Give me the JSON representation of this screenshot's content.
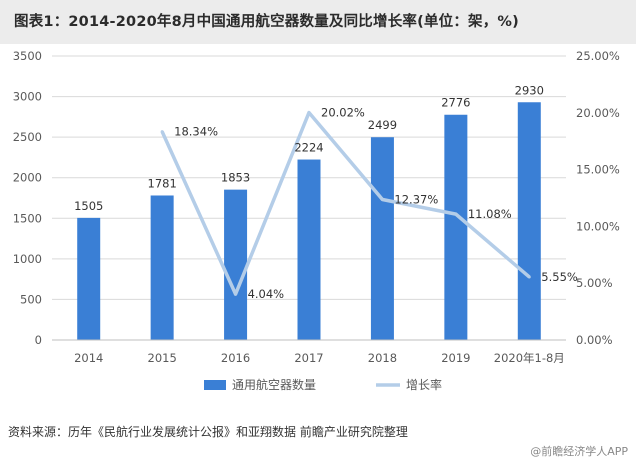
{
  "title": "图表1：2014-2020年8月中国通用航空器数量及同比增长率(单位：架，%)",
  "source": "资料来源：历年《民航行业发展统计公报》和亚翔数据 前瞻产业研究院整理",
  "credit": "@前瞻经济学人APP",
  "colors": {
    "bar": "#3a7fd5",
    "line": "#b4cde8",
    "grid": "#d9d9d9",
    "text": "#595959"
  },
  "chart_data": {
    "type": "bar",
    "categories": [
      "2014",
      "2015",
      "2016",
      "2017",
      "2018",
      "2019",
      "2020年1-8月"
    ],
    "series": [
      {
        "name": "通用航空器数量",
        "type": "bar",
        "axis": "left",
        "values": [
          1505,
          1781,
          1853,
          2224,
          2499,
          2776,
          2930
        ],
        "labels": [
          "1505",
          "1781",
          "1853",
          "2224",
          "2499",
          "2776",
          "2930"
        ]
      },
      {
        "name": "增长率",
        "type": "line",
        "axis": "right",
        "values": [
          null,
          18.34,
          4.04,
          20.02,
          12.37,
          11.08,
          5.55
        ],
        "labels": [
          "",
          "18.34%",
          "4.04%",
          "20.02%",
          "12.37%",
          "11.08%",
          "5.55%"
        ]
      }
    ],
    "y_left": {
      "min": 0,
      "max": 3500,
      "ticks": [
        "0",
        "500",
        "1000",
        "1500",
        "2000",
        "2500",
        "3000",
        "3500"
      ]
    },
    "y_right": {
      "min": 0,
      "max": 25,
      "ticks": [
        "0.00%",
        "5.00%",
        "10.00%",
        "15.00%",
        "20.00%",
        "25.00%"
      ]
    },
    "grid": true,
    "legend_position": "bottom"
  }
}
